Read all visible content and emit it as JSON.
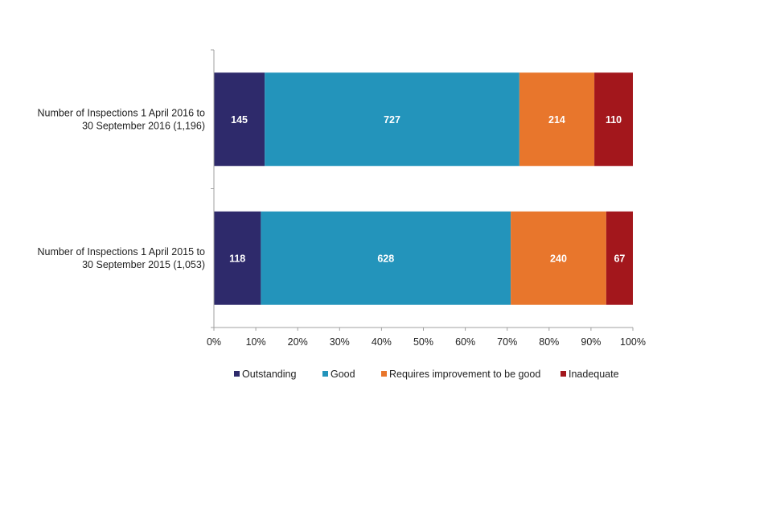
{
  "chart_data": {
    "type": "bar",
    "orientation": "horizontal",
    "stacked": "percent",
    "categories": [
      "Number of Inspections 1 April 2016 to 30 September 2016 (1,196)",
      "Number of Inspections 1 April 2015 to 30 September 2015 (1,053)"
    ],
    "category_lines": [
      [
        "Number of Inspections 1 April 2016 to",
        "30 September 2016 (1,196)"
      ],
      [
        "Number of Inspections 1 April 2015 to",
        "30 September 2015 (1,053)"
      ]
    ],
    "series": [
      {
        "name": "Outstanding",
        "color": "#2e2a6b",
        "values": [
          145,
          118
        ]
      },
      {
        "name": "Good",
        "color": "#2394bb",
        "values": [
          727,
          628
        ]
      },
      {
        "name": "Requires improvement to be good",
        "color": "#e8762c",
        "values": [
          214,
          240
        ]
      },
      {
        "name": "Inadequate",
        "color": "#a3171c",
        "values": [
          110,
          67
        ]
      }
    ],
    "xlim": [
      0,
      100
    ],
    "x_ticks": [
      "0%",
      "10%",
      "20%",
      "30%",
      "40%",
      "50%",
      "60%",
      "70%",
      "80%",
      "90%",
      "100%"
    ],
    "grid": false,
    "legend_position": "bottom",
    "title": "",
    "xlabel": "",
    "ylabel": ""
  }
}
